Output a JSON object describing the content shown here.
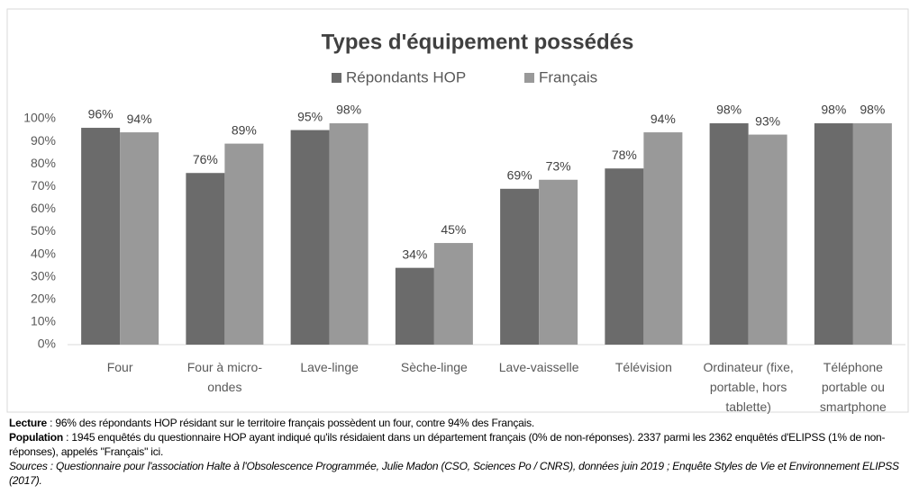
{
  "chart_data": {
    "type": "bar",
    "title": "Types d'équipement possédés",
    "categories": [
      "Four",
      "Four à micro-ondes",
      "Lave-linge",
      "Sèche-linge",
      "Lave-vaisselle",
      "Télévision",
      "Ordinateur (fixe, portable, hors tablette)",
      "Téléphone portable ou smartphone"
    ],
    "series": [
      {
        "name": "Répondants HOP",
        "color": "#6b6b6b",
        "values": [
          96,
          76,
          95,
          34,
          69,
          78,
          98,
          98
        ],
        "value_labels": [
          "96%",
          "76%",
          "95%",
          "34%",
          "69%",
          "78%",
          "98%",
          "98%"
        ]
      },
      {
        "name": "Français",
        "color": "#999999",
        "values": [
          94,
          89,
          98,
          45,
          73,
          94,
          93,
          98
        ],
        "value_labels": [
          "94%",
          "89%",
          "98%",
          "45%",
          "73%",
          "94%",
          "93%",
          "98%"
        ]
      }
    ],
    "ylim": [
      0,
      100
    ],
    "yticks": [
      {
        "value": 0,
        "label": "0%"
      },
      {
        "value": 10,
        "label": "10%"
      },
      {
        "value": 20,
        "label": "20%"
      },
      {
        "value": 30,
        "label": "30%"
      },
      {
        "value": 40,
        "label": "40%"
      },
      {
        "value": 50,
        "label": "50%"
      },
      {
        "value": 60,
        "label": "60%"
      },
      {
        "value": 70,
        "label": "70%"
      },
      {
        "value": 80,
        "label": "80%"
      },
      {
        "value": 90,
        "label": "90%"
      },
      {
        "value": 100,
        "label": "100%"
      }
    ],
    "grid": false,
    "legend": "top"
  },
  "notes": {
    "lecture": {
      "label": "Lecture",
      "text": " : 96% des répondants HOP résidant sur le territoire français possèdent un four, contre 94% des Français."
    },
    "population": {
      "label": "Population",
      "text": " : 1945 enquêtés du questionnaire HOP ayant indiqué qu'ils résidaient dans un département français (0% de non-réponses). 2337 parmi les 2362 enquêtés d'ELIPSS (1% de non-réponses), appelés \"Français\" ici."
    },
    "sources": "Sources : Questionnaire pour l'association Halte à l'Obsolescence Programmée, Julie Madon (CSO, Sciences Po / CNRS), données juin 2019 ; Enquête Styles de Vie et Environnement ELIPSS (2017)."
  }
}
